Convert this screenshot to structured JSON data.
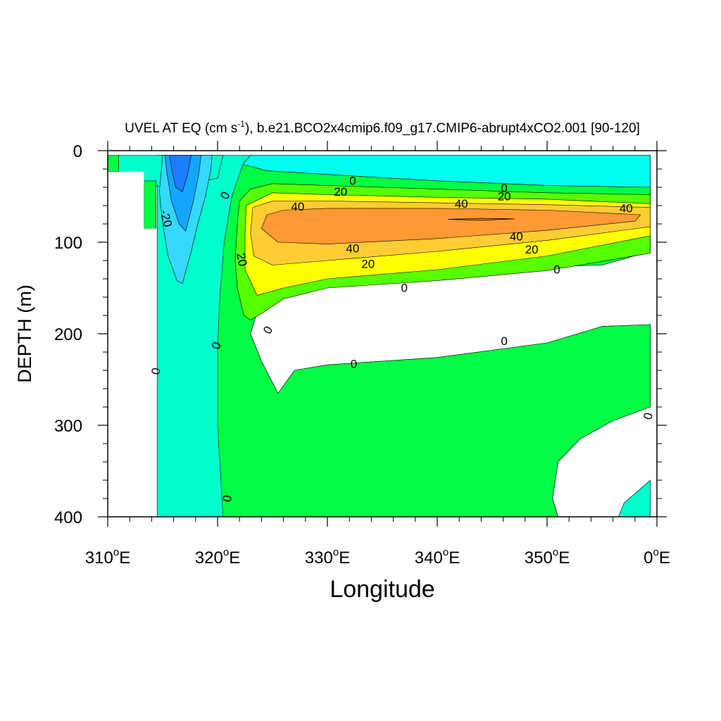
{
  "chart_data": {
    "type": "contour",
    "title": "UVEL AT EQ (cm s",
    "title_superscript": "-1",
    "title_suffix": "), b.e21.BCO2x4cmip6.f09_g17.CMIP6-abrupt4xCO2.001 [90-120]",
    "xlabel": "Longitude",
    "ylabel": "DEPTH (m)",
    "xlim": [
      310,
      360
    ],
    "ylim": [
      400,
      0
    ],
    "x_ticks": [
      {
        "value": 310,
        "num": "310",
        "unit": "E"
      },
      {
        "value": 320,
        "num": "320",
        "unit": "E"
      },
      {
        "value": 330,
        "num": "330",
        "unit": "E"
      },
      {
        "value": 340,
        "num": "340",
        "unit": "E"
      },
      {
        "value": 350,
        "num": "350",
        "unit": "E"
      },
      {
        "value": 360,
        "num": "0",
        "unit": "E"
      }
    ],
    "degree_symbol": "o",
    "y_ticks": [
      {
        "value": 0,
        "label": "0"
      },
      {
        "value": 100,
        "label": "100"
      },
      {
        "value": 200,
        "label": "200"
      },
      {
        "value": 300,
        "label": "300"
      },
      {
        "value": 400,
        "label": "400"
      }
    ],
    "colors": {
      "land": "#ffffff",
      "lt_-30": "#1e7cff",
      "lt_-20": "#12a6ff",
      "lt_-10": "#33d9ff",
      "lt_0": "#00ffcc",
      "near_0_surface": "#00ffee",
      "0_10": "#00ff44",
      "10_20": "#55ff00",
      "20_30": "#ffff00",
      "30_40": "#ffcc33",
      "40_50": "#ff9933"
    },
    "regions": [
      {
        "name": "westward-flow",
        "fill": "lt_0",
        "pts": [
          [
            314.5,
            400
          ],
          [
            314.5,
            5
          ],
          [
            320.5,
            5
          ],
          [
            323,
            5
          ],
          [
            326,
            5
          ],
          [
            335,
            5
          ],
          [
            345,
            5
          ],
          [
            359.4,
            5
          ],
          [
            359.4,
            70
          ],
          [
            359.4,
            110
          ],
          [
            355,
            125
          ],
          [
            345,
            128
          ],
          [
            335,
            132
          ],
          [
            328,
            138
          ],
          [
            324.5,
            145
          ],
          [
            323.5,
            180
          ],
          [
            323,
            200
          ],
          [
            324,
            230
          ],
          [
            325.5,
            265
          ],
          [
            327,
            240
          ],
          [
            330,
            234
          ],
          [
            340,
            226
          ],
          [
            350,
            210
          ],
          [
            355,
            192
          ],
          [
            359.4,
            190
          ],
          [
            359.4,
            280
          ],
          [
            356,
            295
          ],
          [
            353,
            315
          ],
          [
            351,
            340
          ],
          [
            350.5,
            380
          ],
          [
            351,
            400
          ],
          [
            320.5,
            400
          ]
        ]
      },
      {
        "name": "surface-westward",
        "fill": "near_0_surface",
        "pts": [
          [
            323,
            5
          ],
          [
            326,
            5
          ],
          [
            335,
            5
          ],
          [
            345,
            5
          ],
          [
            359.4,
            5
          ],
          [
            359.4,
            40
          ],
          [
            350,
            38
          ],
          [
            340,
            33
          ],
          [
            330,
            26
          ],
          [
            324.5,
            22
          ],
          [
            322.3,
            15
          ]
        ]
      },
      {
        "name": "undercurrent-0",
        "fill": "0_10",
        "pts": [
          [
            320.5,
            400
          ],
          [
            320,
            300
          ],
          [
            320,
            215
          ],
          [
            320.2,
            160
          ],
          [
            320.6,
            100
          ],
          [
            321.3,
            50
          ],
          [
            322.3,
            15
          ],
          [
            324.5,
            22
          ],
          [
            330,
            26
          ],
          [
            340,
            33
          ],
          [
            350,
            38
          ],
          [
            359.4,
            40
          ],
          [
            359.4,
            110
          ],
          [
            355,
            125
          ],
          [
            345,
            128
          ],
          [
            335,
            132
          ],
          [
            328,
            138
          ],
          [
            324.5,
            145
          ],
          [
            323.5,
            180
          ],
          [
            323,
            200
          ],
          [
            324,
            230
          ],
          [
            325.5,
            265
          ],
          [
            327,
            240
          ],
          [
            330,
            234
          ],
          [
            340,
            226
          ],
          [
            350,
            210
          ],
          [
            355,
            192
          ],
          [
            359.4,
            190
          ],
          [
            359.4,
            280
          ],
          [
            356,
            295
          ],
          [
            353,
            315
          ],
          [
            351,
            340
          ],
          [
            350.5,
            380
          ],
          [
            351,
            400
          ]
        ]
      },
      {
        "name": "deep-west-lobe",
        "fill": "lt_0",
        "pts": [
          [
            356.5,
            400
          ],
          [
            357,
            385
          ],
          [
            359.4,
            360
          ],
          [
            359.4,
            400
          ]
        ]
      },
      {
        "name": "undercurrent-10",
        "fill": "10_20",
        "pts": [
          [
            322,
            55
          ],
          [
            321.8,
            80
          ],
          [
            321.6,
            120
          ],
          [
            321.8,
            150
          ],
          [
            322.4,
            180
          ],
          [
            323,
            185
          ],
          [
            324,
            178
          ],
          [
            326,
            162
          ],
          [
            330,
            150
          ],
          [
            340,
            142
          ],
          [
            350,
            131
          ],
          [
            359.4,
            112
          ],
          [
            359.4,
            48
          ],
          [
            350,
            46
          ],
          [
            340,
            42
          ],
          [
            330,
            38
          ],
          [
            325,
            36
          ],
          [
            323,
            42
          ]
        ]
      },
      {
        "name": "undercurrent-20",
        "fill": "20_30",
        "pts": [
          [
            322.6,
            60
          ],
          [
            322.5,
            90
          ],
          [
            322.5,
            130
          ],
          [
            323.6,
            158
          ],
          [
            326,
            150
          ],
          [
            330,
            140
          ],
          [
            340,
            130
          ],
          [
            350,
            115
          ],
          [
            359.4,
            93
          ],
          [
            359.4,
            58
          ],
          [
            350,
            53
          ],
          [
            340,
            51
          ],
          [
            330,
            48
          ],
          [
            325,
            46
          ]
        ]
      },
      {
        "name": "undercurrent-30",
        "fill": "30_40",
        "pts": [
          [
            323.2,
            62
          ],
          [
            323,
            90
          ],
          [
            323.3,
            115
          ],
          [
            325,
            125
          ],
          [
            330,
            120
          ],
          [
            340,
            110
          ],
          [
            350,
            98
          ],
          [
            359.4,
            83
          ],
          [
            359.4,
            62
          ],
          [
            350,
            59
          ],
          [
            340,
            57
          ],
          [
            330,
            55
          ],
          [
            325,
            55
          ]
        ]
      },
      {
        "name": "core-40",
        "fill": "40_50",
        "pts": [
          [
            324.5,
            70
          ],
          [
            324,
            85
          ],
          [
            325.5,
            100
          ],
          [
            330,
            102
          ],
          [
            340,
            96
          ],
          [
            350,
            87
          ],
          [
            358,
            77
          ],
          [
            358.5,
            70
          ],
          [
            350,
            65
          ],
          [
            340,
            63
          ],
          [
            330,
            63
          ],
          [
            326,
            65
          ]
        ]
      },
      {
        "name": "surface-flow-west",
        "fill": "lt_0",
        "pts": [
          [
            311,
            5
          ],
          [
            320.5,
            5
          ],
          [
            320.3,
            15
          ],
          [
            320,
            30
          ],
          [
            318,
            35
          ],
          [
            315,
            40
          ],
          [
            313.5,
            35
          ],
          [
            312,
            30
          ],
          [
            311,
            28
          ]
        ]
      },
      {
        "name": "western-boundary-10",
        "fill": "lt_-10",
        "pts": [
          [
            315,
            5
          ],
          [
            319.5,
            5
          ],
          [
            319.4,
            20
          ],
          [
            318.9,
            50
          ],
          [
            318.2,
            80
          ],
          [
            317.6,
            110
          ],
          [
            316.8,
            145
          ],
          [
            316.3,
            142
          ],
          [
            315.5,
            115
          ],
          [
            315,
            80
          ],
          [
            314.7,
            45
          ]
        ]
      },
      {
        "name": "western-boundary-20",
        "fill": "lt_-20",
        "pts": [
          [
            315.2,
            5
          ],
          [
            318.5,
            5
          ],
          [
            318.3,
            25
          ],
          [
            317.8,
            55
          ],
          [
            317.1,
            88
          ],
          [
            316.5,
            80
          ],
          [
            315.8,
            55
          ],
          [
            315.4,
            25
          ]
        ]
      },
      {
        "name": "western-boundary-30",
        "fill": "lt_-30",
        "pts": [
          [
            315.6,
            5
          ],
          [
            317.6,
            5
          ],
          [
            317.3,
            25
          ],
          [
            316.8,
            45
          ],
          [
            316.2,
            40
          ],
          [
            315.9,
            25
          ]
        ]
      },
      {
        "name": "coastal-green-strip",
        "fill": "0_10",
        "pts": [
          [
            310,
            5
          ],
          [
            311,
            5
          ],
          [
            311,
            23
          ],
          [
            310,
            23
          ]
        ]
      },
      {
        "name": "coastal-green-block",
        "fill": "0_10",
        "pts": [
          [
            313.3,
            33
          ],
          [
            314.4,
            33
          ],
          [
            314.4,
            85
          ],
          [
            313.3,
            85
          ]
        ]
      },
      {
        "name": "land-mask",
        "fill": "land",
        "pts": [
          [
            310,
            23
          ],
          [
            313.3,
            23
          ],
          [
            313.3,
            85
          ],
          [
            314.4,
            85
          ],
          [
            314.4,
            400
          ],
          [
            310,
            400
          ]
        ]
      },
      {
        "name": "core-max-sliver",
        "fill": "40_50",
        "outline": true,
        "pts": [
          [
            341,
            75
          ],
          [
            344,
            74
          ],
          [
            347,
            74.5
          ],
          [
            344,
            76
          ]
        ]
      }
    ],
    "contour_labels": [
      {
        "text": "0",
        "x": 332.3,
        "y": 33,
        "rot": 0
      },
      {
        "text": "20",
        "x": 331.2,
        "y": 45,
        "rot": 0
      },
      {
        "text": "40",
        "x": 327.3,
        "y": 61,
        "rot": 0
      },
      {
        "text": "40",
        "x": 342.2,
        "y": 58,
        "rot": 0
      },
      {
        "text": "20",
        "x": 346.1,
        "y": 50,
        "rot": 0
      },
      {
        "text": "0",
        "x": 346.1,
        "y": 41,
        "rot": 0
      },
      {
        "text": "40",
        "x": 357.2,
        "y": 63,
        "rot": 0
      },
      {
        "text": "40",
        "x": 332.3,
        "y": 107,
        "rot": 0
      },
      {
        "text": "40",
        "x": 347.2,
        "y": 94,
        "rot": 0
      },
      {
        "text": "20",
        "x": 348.6,
        "y": 108,
        "rot": 0
      },
      {
        "text": "20",
        "x": 333.7,
        "y": 124,
        "rot": 0
      },
      {
        "text": "0",
        "x": 350.9,
        "y": 130,
        "rot": 0
      },
      {
        "text": "0",
        "x": 337.0,
        "y": 150,
        "rot": 0
      },
      {
        "text": "0",
        "x": 324.6,
        "y": 196,
        "rot": -60
      },
      {
        "text": "0",
        "x": 346.1,
        "y": 208,
        "rot": 0
      },
      {
        "text": "0",
        "x": 332.4,
        "y": 233,
        "rot": 0
      },
      {
        "text": "0",
        "x": 319.9,
        "y": 213,
        "rot": -70
      },
      {
        "text": "0",
        "x": 320.7,
        "y": 49,
        "rot": -60
      },
      {
        "text": "20",
        "x": 322.2,
        "y": 119,
        "rot": 80
      },
      {
        "text": "-20",
        "x": 315.3,
        "y": 74,
        "rot": 75
      },
      {
        "text": "0",
        "x": 314.4,
        "y": 241,
        "rot": -80
      },
      {
        "text": "0",
        "x": 320.9,
        "y": 380,
        "rot": -80
      },
      {
        "text": "0",
        "x": 359.2,
        "y": 290,
        "rot": -75
      }
    ]
  }
}
